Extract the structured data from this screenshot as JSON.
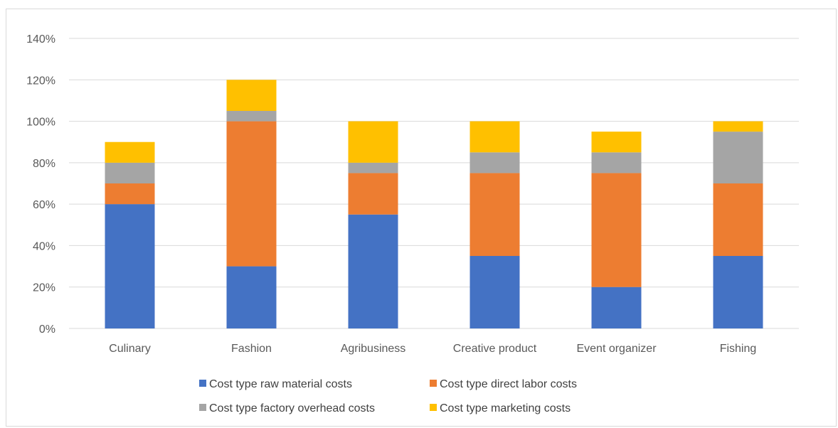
{
  "chart_data": {
    "type": "bar",
    "stacked": true,
    "categories": [
      "Culinary",
      "Fashion",
      "Agribusiness",
      "Creative product",
      "Event organizer",
      "Fishing"
    ],
    "series": [
      {
        "name": "Cost type raw material costs",
        "color": "#4472c4",
        "values": [
          60,
          30,
          55,
          35,
          20,
          35
        ]
      },
      {
        "name": "Cost type direct labor costs",
        "color": "#ed7d31",
        "values": [
          10,
          70,
          20,
          40,
          55,
          35
        ]
      },
      {
        "name": "Cost type factory overhead costs",
        "color": "#a5a5a5",
        "values": [
          10,
          5,
          5,
          10,
          10,
          25
        ]
      },
      {
        "name": "Cost type marketing costs",
        "color": "#ffc000",
        "values": [
          10,
          15,
          20,
          15,
          10,
          5
        ]
      }
    ],
    "ylim": [
      0,
      140
    ],
    "yticks": [
      "0%",
      "20%",
      "40%",
      "60%",
      "80%",
      "100%",
      "120%",
      "140%"
    ],
    "ytick_values": [
      0,
      20,
      40,
      60,
      80,
      100,
      120,
      140
    ],
    "grid": true,
    "legend_position": "bottom"
  }
}
